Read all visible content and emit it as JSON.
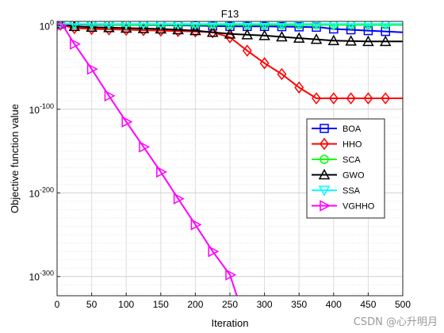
{
  "chart_data": {
    "type": "line",
    "title": "F13",
    "xlabel": "Iteration",
    "ylabel": "Objective function value",
    "xlim": [
      0,
      500
    ],
    "ylim_exp": [
      -323,
      5
    ],
    "yscale": "log",
    "x_ticks": [
      "0",
      "50",
      "100",
      "150",
      "200",
      "250",
      "300",
      "350",
      "400",
      "450",
      "500"
    ],
    "y_ticks": [
      {
        "exp": 0,
        "label": "10",
        "sup": "0"
      },
      {
        "exp": -100,
        "label": "10",
        "sup": "-100"
      },
      {
        "exp": -200,
        "label": "10",
        "sup": "-200"
      },
      {
        "exp": -300,
        "label": "10",
        "sup": "-300"
      }
    ],
    "grid": true,
    "legend_placement": "right-middle",
    "series": [
      {
        "name": "BOA",
        "color": "#0000ff",
        "marker": "square",
        "points": [
          [
            0,
            2
          ],
          [
            50,
            1
          ],
          [
            100,
            1
          ],
          [
            150,
            0.5
          ],
          [
            200,
            0
          ],
          [
            250,
            -1
          ],
          [
            300,
            -1
          ],
          [
            350,
            -1.5
          ],
          [
            380,
            -2
          ],
          [
            400,
            -4
          ],
          [
            450,
            -6
          ],
          [
            500,
            -8
          ]
        ],
        "marker_x": [
          5,
          25,
          50,
          75,
          100,
          125,
          150,
          175,
          200,
          225,
          250,
          275,
          300,
          325,
          350,
          375,
          400,
          425,
          450,
          475
        ]
      },
      {
        "name": "HHO",
        "color": "#ff0000",
        "marker": "diamond",
        "points": [
          [
            0,
            2
          ],
          [
            25,
            -3
          ],
          [
            50,
            -4
          ],
          [
            100,
            -5
          ],
          [
            150,
            -6
          ],
          [
            200,
            -7
          ],
          [
            225,
            -8
          ],
          [
            250,
            -14
          ],
          [
            275,
            -30
          ],
          [
            300,
            -45
          ],
          [
            325,
            -58
          ],
          [
            350,
            -74
          ],
          [
            375,
            -87
          ],
          [
            400,
            -87
          ],
          [
            450,
            -87
          ],
          [
            500,
            -87
          ]
        ],
        "marker_x": [
          5,
          25,
          50,
          75,
          100,
          125,
          150,
          175,
          200,
          225,
          250,
          275,
          300,
          325,
          350,
          375,
          400,
          425,
          450,
          475
        ]
      },
      {
        "name": "SCA",
        "color": "#00ff00",
        "marker": "circle",
        "points": [
          [
            0,
            2
          ],
          [
            100,
            1
          ],
          [
            200,
            1
          ],
          [
            300,
            1
          ],
          [
            400,
            1
          ],
          [
            500,
            1
          ]
        ],
        "marker_x": [
          5,
          25,
          50,
          75,
          100,
          125,
          150,
          175,
          200,
          225,
          250,
          275,
          300,
          325,
          350,
          375,
          400,
          425,
          450,
          475
        ]
      },
      {
        "name": "GWO",
        "color": "#000000",
        "marker": "triangle-up",
        "points": [
          [
            0,
            3
          ],
          [
            25,
            -1
          ],
          [
            50,
            -2
          ],
          [
            100,
            -3
          ],
          [
            150,
            -4
          ],
          [
            200,
            -6
          ],
          [
            250,
            -10
          ],
          [
            300,
            -12
          ],
          [
            350,
            -15
          ],
          [
            400,
            -18
          ],
          [
            450,
            -19
          ],
          [
            500,
            -19
          ]
        ],
        "marker_x": [
          5,
          25,
          50,
          75,
          100,
          125,
          150,
          175,
          200,
          225,
          250,
          275,
          300,
          325,
          350,
          375,
          400,
          425,
          450,
          475
        ]
      },
      {
        "name": "SSA",
        "color": "#00ffff",
        "marker": "triangle-down",
        "points": [
          [
            0,
            2
          ],
          [
            100,
            2
          ],
          [
            200,
            2
          ],
          [
            300,
            2
          ],
          [
            400,
            2
          ],
          [
            500,
            2
          ]
        ],
        "marker_x": [
          5,
          25,
          50,
          75,
          100,
          125,
          150,
          175,
          200,
          225,
          250,
          275,
          300,
          325,
          350,
          375,
          400,
          425,
          450,
          475
        ]
      },
      {
        "name": "VGHHO",
        "color": "#ff00ff",
        "marker": "triangle-right",
        "points": [
          [
            0,
            2
          ],
          [
            10,
            -2
          ],
          [
            25,
            -22
          ],
          [
            50,
            -52
          ],
          [
            75,
            -84
          ],
          [
            100,
            -115
          ],
          [
            125,
            -145
          ],
          [
            150,
            -175
          ],
          [
            175,
            -207
          ],
          [
            200,
            -238
          ],
          [
            225,
            -270
          ],
          [
            250,
            -298
          ],
          [
            260,
            -323
          ]
        ],
        "marker_x": [
          5,
          25,
          50,
          75,
          100,
          125,
          150,
          175,
          200,
          225,
          250
        ]
      }
    ]
  },
  "watermark": "CSDN @心升明月"
}
